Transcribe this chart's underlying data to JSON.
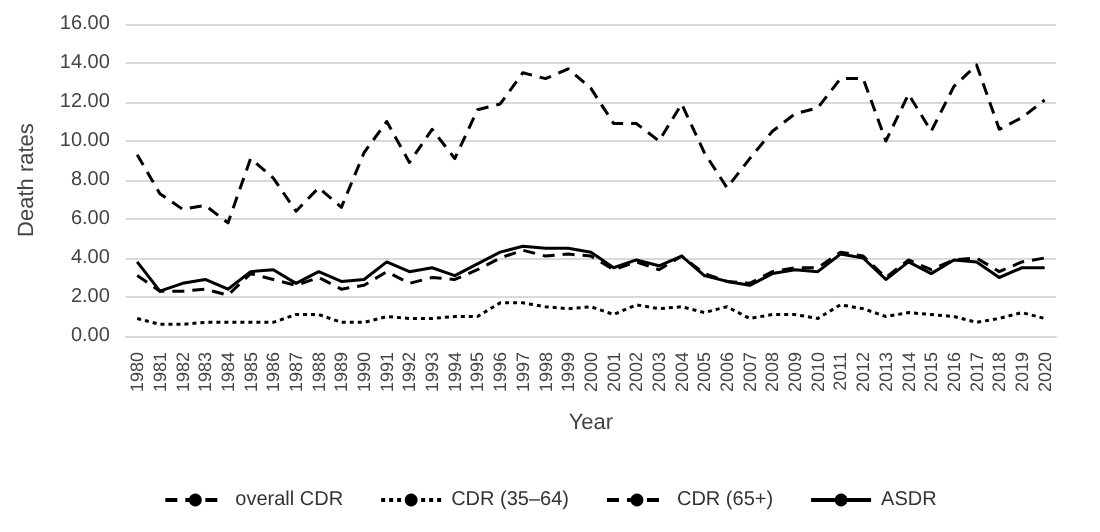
{
  "chart_data": {
    "type": "line",
    "xlabel": "Year",
    "ylabel": "Death rates",
    "categories": [
      "1980",
      "1981",
      "1982",
      "1983",
      "1984",
      "1985",
      "1986",
      "1987",
      "1988",
      "1989",
      "1990",
      "1991",
      "1992",
      "1993",
      "1994",
      "1995",
      "1996",
      "1997",
      "1998",
      "1999",
      "2000",
      "2001",
      "2002",
      "2003",
      "2004",
      "2005",
      "2006",
      "2007",
      "2008",
      "2009",
      "2010",
      "2011",
      "2012",
      "2013",
      "2014",
      "2015",
      "2016",
      "2017",
      "2018",
      "2019",
      "2020"
    ],
    "series": [
      {
        "name": "overall CDR",
        "color": "#000000",
        "line_style": "dashed",
        "values": [
          3.1,
          2.3,
          2.3,
          2.4,
          2.1,
          3.2,
          2.9,
          2.6,
          3.0,
          2.4,
          2.6,
          3.3,
          2.7,
          3.0,
          2.9,
          3.4,
          4.0,
          4.4,
          4.1,
          4.2,
          4.1,
          3.4,
          3.8,
          3.4,
          4.1,
          3.2,
          2.8,
          2.7,
          3.3,
          3.5,
          3.5,
          4.3,
          4.1,
          3.0,
          3.9,
          3.4,
          3.9,
          4.0,
          3.3,
          3.8,
          4.0
        ]
      },
      {
        "name": "CDR (35–64)",
        "color": "#000000",
        "line_style": "dotted",
        "values": [
          0.9,
          0.6,
          0.6,
          0.7,
          0.7,
          0.7,
          0.7,
          1.1,
          1.1,
          0.7,
          0.7,
          1.0,
          0.9,
          0.9,
          1.0,
          1.0,
          1.7,
          1.7,
          1.5,
          1.4,
          1.5,
          1.1,
          1.6,
          1.4,
          1.5,
          1.2,
          1.5,
          0.9,
          1.1,
          1.1,
          0.9,
          1.6,
          1.4,
          1.0,
          1.2,
          1.1,
          1.0,
          0.7,
          0.9,
          1.2,
          0.9
        ]
      },
      {
        "name": "CDR (65+)",
        "color": "#000000",
        "line_style": "dashed",
        "values": [
          9.3,
          7.3,
          6.5,
          6.7,
          5.8,
          9.1,
          8.1,
          6.4,
          7.6,
          6.6,
          9.4,
          11.0,
          8.9,
          10.6,
          9.1,
          11.6,
          11.9,
          13.5,
          13.2,
          13.7,
          12.7,
          10.9,
          10.9,
          10.0,
          11.9,
          9.4,
          7.6,
          9.1,
          10.5,
          11.4,
          11.7,
          13.2,
          13.2,
          10.0,
          12.4,
          10.5,
          12.8,
          13.9,
          10.6,
          11.2,
          12.1
        ]
      },
      {
        "name": "ASDR",
        "color": "#000000",
        "line_style": "solid",
        "values": [
          3.8,
          2.3,
          2.7,
          2.9,
          2.4,
          3.3,
          3.4,
          2.7,
          3.3,
          2.8,
          2.9,
          3.8,
          3.3,
          3.5,
          3.1,
          3.7,
          4.3,
          4.6,
          4.5,
          4.5,
          4.3,
          3.5,
          3.9,
          3.6,
          4.1,
          3.1,
          2.8,
          2.6,
          3.2,
          3.4,
          3.3,
          4.2,
          4.0,
          2.9,
          3.8,
          3.2,
          3.9,
          3.8,
          3.0,
          3.5,
          3.5
        ]
      }
    ],
    "ylim": [
      0,
      16
    ],
    "yticks": [
      {
        "value": 0,
        "label": "0.00"
      },
      {
        "value": 2,
        "label": "2.00"
      },
      {
        "value": 4,
        "label": "4.00"
      },
      {
        "value": 6,
        "label": "6.00"
      },
      {
        "value": 8,
        "label": "8.00"
      },
      {
        "value": 10,
        "label": "10.00"
      },
      {
        "value": 12,
        "label": "12.00"
      },
      {
        "value": 14,
        "label": "14.00"
      },
      {
        "value": 16,
        "label": "16.00"
      }
    ],
    "grid": "y",
    "legend": "bottom",
    "marker": "none"
  }
}
